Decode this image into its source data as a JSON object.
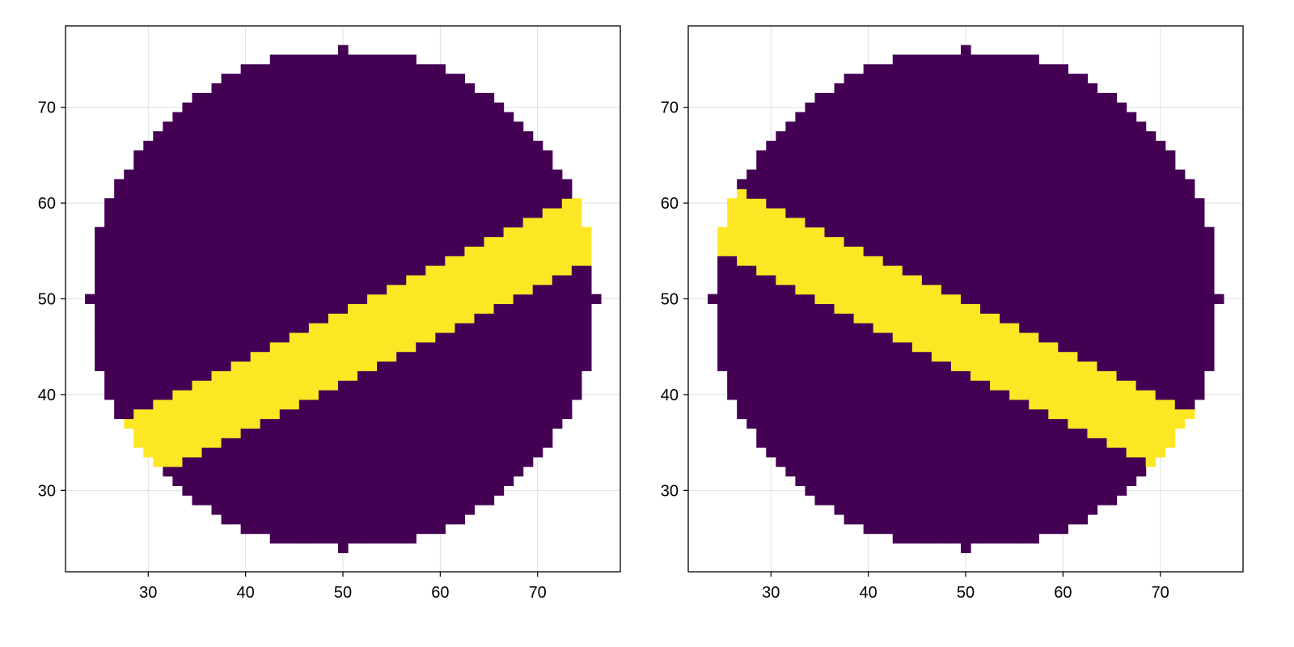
{
  "colors": {
    "background": "#ffffff",
    "outside_band": "#440154",
    "inside_band": "#fde725"
  },
  "chart_data": [
    {
      "type": "heatmap",
      "title": "",
      "xlabel": "",
      "ylabel": "",
      "xlim": [
        21.5,
        78.5
      ],
      "ylim": [
        21.5,
        78.5
      ],
      "xticks": [
        30,
        40,
        50,
        60,
        70
      ],
      "yticks": [
        30,
        40,
        50,
        60,
        70
      ],
      "grid": true,
      "cell_size": 1,
      "values": [
        0,
        1
      ],
      "disk": {
        "center": [
          50,
          50
        ],
        "radius": 26
      },
      "band": {
        "axis_point": [
          50,
          45
        ],
        "direction": [
          1,
          0.5
        ],
        "half_width": 3.4
      }
    },
    {
      "type": "heatmap",
      "title": "",
      "xlabel": "",
      "ylabel": "",
      "xlim": [
        21.5,
        78.5
      ],
      "ylim": [
        21.5,
        78.5
      ],
      "xticks": [
        30,
        40,
        50,
        60,
        70
      ],
      "yticks": [
        30,
        40,
        50,
        60,
        70
      ],
      "grid": true,
      "cell_size": 1,
      "values": [
        0,
        1
      ],
      "disk": {
        "center": [
          50,
          50
        ],
        "radius": 26
      },
      "band": {
        "axis_point": [
          50,
          46
        ],
        "direction": [
          1,
          -0.5
        ],
        "half_width": 3.4
      }
    }
  ]
}
